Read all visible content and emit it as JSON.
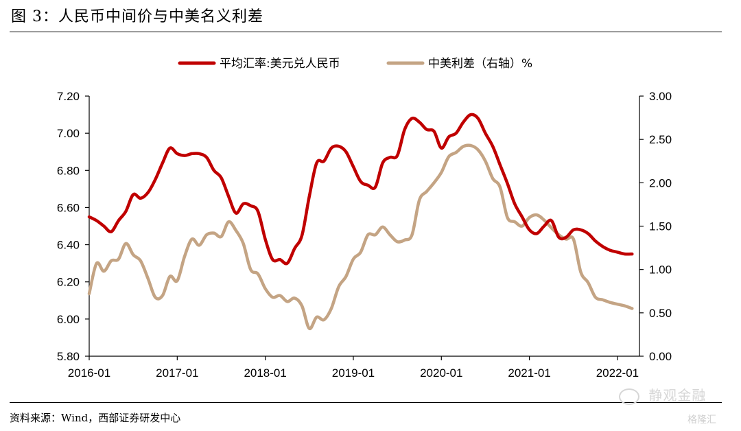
{
  "header": {
    "title": "图 3：人民币中间价与中美名义利差"
  },
  "footer": {
    "source": "资料来源：Wind，西部证券研发中心"
  },
  "watermark": {
    "text": "静观金融",
    "brand": "格隆汇"
  },
  "chart_data": {
    "type": "line",
    "legend_position": "top-center",
    "grid": false,
    "x_tick_labels": [
      "2016-01",
      "2017-01",
      "2018-01",
      "2019-01",
      "2020-01",
      "2021-01",
      "2022-01"
    ],
    "xlim": [
      "2016-01",
      "2022-04"
    ],
    "y_left": {
      "ticks": [
        "5.80",
        "6.00",
        "6.20",
        "6.40",
        "6.60",
        "6.80",
        "7.00",
        "7.20"
      ],
      "lim": [
        5.8,
        7.2
      ]
    },
    "y_right": {
      "ticks": [
        "0.00",
        "0.50",
        "1.00",
        "1.50",
        "2.00",
        "2.50",
        "3.00"
      ],
      "lim": [
        0,
        3
      ]
    },
    "series": [
      {
        "name": "平均汇率:美元兑人民币",
        "axis": "left",
        "color": "#c00000",
        "x": [
          "2016-01",
          "2016-02",
          "2016-03",
          "2016-04",
          "2016-05",
          "2016-06",
          "2016-07",
          "2016-08",
          "2016-09",
          "2016-10",
          "2016-11",
          "2016-12",
          "2017-01",
          "2017-02",
          "2017-03",
          "2017-04",
          "2017-05",
          "2017-06",
          "2017-07",
          "2017-08",
          "2017-09",
          "2017-10",
          "2017-11",
          "2017-12",
          "2018-01",
          "2018-02",
          "2018-03",
          "2018-04",
          "2018-05",
          "2018-06",
          "2018-07",
          "2018-08",
          "2018-09",
          "2018-10",
          "2018-11",
          "2018-12",
          "2019-01",
          "2019-02",
          "2019-03",
          "2019-04",
          "2019-05",
          "2019-06",
          "2019-07",
          "2019-08",
          "2019-09",
          "2019-10",
          "2019-11",
          "2019-12",
          "2020-01",
          "2020-02",
          "2020-03",
          "2020-04",
          "2020-05",
          "2020-06",
          "2020-07",
          "2020-08",
          "2020-09",
          "2020-10",
          "2020-11",
          "2020-12",
          "2021-01",
          "2021-02",
          "2021-03",
          "2021-04",
          "2021-05",
          "2021-06",
          "2021-07",
          "2021-08",
          "2021-09",
          "2021-10",
          "2021-11",
          "2021-12",
          "2022-01",
          "2022-02",
          "2022-03"
        ],
        "values": [
          6.55,
          6.53,
          6.5,
          6.47,
          6.53,
          6.58,
          6.67,
          6.65,
          6.68,
          6.75,
          6.84,
          6.92,
          6.89,
          6.88,
          6.89,
          6.89,
          6.87,
          6.8,
          6.76,
          6.66,
          6.57,
          6.62,
          6.61,
          6.58,
          6.43,
          6.32,
          6.32,
          6.3,
          6.38,
          6.45,
          6.66,
          6.84,
          6.85,
          6.92,
          6.93,
          6.9,
          6.82,
          6.74,
          6.72,
          6.71,
          6.84,
          6.87,
          6.88,
          7.02,
          7.08,
          7.06,
          7.02,
          7.01,
          6.92,
          6.98,
          7.0,
          7.06,
          7.1,
          7.08,
          7.0,
          6.93,
          6.83,
          6.73,
          6.62,
          6.55,
          6.48,
          6.46,
          6.5,
          6.53,
          6.44,
          6.44,
          6.48,
          6.48,
          6.46,
          6.42,
          6.39,
          6.37,
          6.36,
          6.35,
          6.35
        ]
      },
      {
        "name": "中美利差（右轴）%",
        "axis": "right",
        "color": "#c4a484",
        "x": [
          "2016-01",
          "2016-02",
          "2016-03",
          "2016-04",
          "2016-05",
          "2016-06",
          "2016-07",
          "2016-08",
          "2016-09",
          "2016-10",
          "2016-11",
          "2016-12",
          "2017-01",
          "2017-02",
          "2017-03",
          "2017-04",
          "2017-05",
          "2017-06",
          "2017-07",
          "2017-08",
          "2017-09",
          "2017-10",
          "2017-11",
          "2017-12",
          "2018-01",
          "2018-02",
          "2018-03",
          "2018-04",
          "2018-05",
          "2018-06",
          "2018-07",
          "2018-08",
          "2018-09",
          "2018-10",
          "2018-11",
          "2018-12",
          "2019-01",
          "2019-02",
          "2019-03",
          "2019-04",
          "2019-05",
          "2019-06",
          "2019-07",
          "2019-08",
          "2019-09",
          "2019-10",
          "2019-11",
          "2019-12",
          "2020-01",
          "2020-02",
          "2020-03",
          "2020-04",
          "2020-05",
          "2020-06",
          "2020-07",
          "2020-08",
          "2020-09",
          "2020-10",
          "2020-11",
          "2020-12",
          "2021-01",
          "2021-02",
          "2021-03",
          "2021-04",
          "2021-05",
          "2021-06",
          "2021-07",
          "2021-08",
          "2021-09",
          "2021-10",
          "2021-11",
          "2021-12",
          "2022-01",
          "2022-02",
          "2022-03"
        ],
        "values": [
          0.72,
          1.07,
          0.98,
          1.1,
          1.12,
          1.3,
          1.17,
          1.1,
          0.9,
          0.68,
          0.7,
          0.92,
          0.87,
          1.15,
          1.35,
          1.28,
          1.4,
          1.42,
          1.38,
          1.55,
          1.45,
          1.3,
          1.0,
          0.95,
          0.78,
          0.68,
          0.7,
          0.63,
          0.67,
          0.58,
          0.32,
          0.45,
          0.42,
          0.55,
          0.8,
          0.92,
          1.12,
          1.2,
          1.4,
          1.4,
          1.49,
          1.4,
          1.32,
          1.34,
          1.4,
          1.8,
          1.9,
          2.0,
          2.12,
          2.3,
          2.35,
          2.42,
          2.43,
          2.38,
          2.25,
          2.05,
          1.95,
          1.6,
          1.55,
          1.5,
          1.6,
          1.63,
          1.57,
          1.48,
          1.4,
          1.35,
          1.35,
          0.97,
          0.85,
          0.68,
          0.65,
          0.62,
          0.6,
          0.58,
          0.55
        ]
      }
    ]
  }
}
